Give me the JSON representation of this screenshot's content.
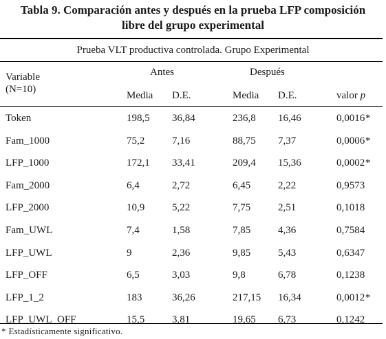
{
  "title": {
    "line1": "Tabla 9. Comparación antes y después en la prueba LFP composición",
    "line2": "libre del grupo experimental"
  },
  "subtitle": "Prueba VLT productiva controlada. Grupo Experimental",
  "header": {
    "variable": "Variable",
    "n": "(N=10)",
    "antes": "Antes",
    "despues": "Después",
    "media1": "Media",
    "de1": "D.E.",
    "media2": "Media",
    "de2": "D.E.",
    "valor": "valor",
    "p": "p"
  },
  "rows": [
    {
      "variable": "Token",
      "antes_media": "198,5",
      "antes_de": "36,84",
      "despues_media": "236,8",
      "despues_de": "16,46",
      "valor_p": "0,0016",
      "sig": "*"
    },
    {
      "variable": "Fam_1000",
      "antes_media": "75,2",
      "antes_de": "7,16",
      "despues_media": "88,75",
      "despues_de": "7,37",
      "valor_p": "0,0006",
      "sig": "*"
    },
    {
      "variable": "LFP_1000",
      "antes_media": "172,1",
      "antes_de": "33,41",
      "despues_media": "209,4",
      "despues_de": "15,36",
      "valor_p": "0,0002",
      "sig": "*"
    },
    {
      "variable": "Fam_2000",
      "antes_media": "6,4",
      "antes_de": "2,72",
      "despues_media": "6,45",
      "despues_de": "2,22",
      "valor_p": "0,9573",
      "sig": ""
    },
    {
      "variable": "LFP_2000",
      "antes_media": "10,9",
      "antes_de": "5,22",
      "despues_media": "7,75",
      "despues_de": "2,51",
      "valor_p": "0,1018",
      "sig": ""
    },
    {
      "variable": "Fam_UWL",
      "antes_media": "7,4",
      "antes_de": "1,58",
      "despues_media": "7,85",
      "despues_de": "4,36",
      "valor_p": "0,7584",
      "sig": ""
    },
    {
      "variable": "LFP_UWL",
      "antes_media": "9",
      "antes_de": "2,36",
      "despues_media": "9,85",
      "despues_de": "5,43",
      "valor_p": "0,6347",
      "sig": ""
    },
    {
      "variable": "LFP_OFF",
      "antes_media": "6,5",
      "antes_de": "3,03",
      "despues_media": "9,8",
      "despues_de": "6,78",
      "valor_p": "0,1238",
      "sig": ""
    },
    {
      "variable": "LFP_1_2",
      "antes_media": "183",
      "antes_de": "36,26",
      "despues_media": "217,15",
      "despues_de": "16,34",
      "valor_p": "0,0012",
      "sig": "*"
    },
    {
      "variable": "LFP_UWL_OFF",
      "antes_media": "15,5",
      "antes_de": "3,81",
      "despues_media": "19,65",
      "despues_de": "6,73",
      "valor_p": "0,1242",
      "sig": ""
    }
  ],
  "footnote": {
    "marker": "*",
    "text": "Estadísticamente significativo."
  }
}
